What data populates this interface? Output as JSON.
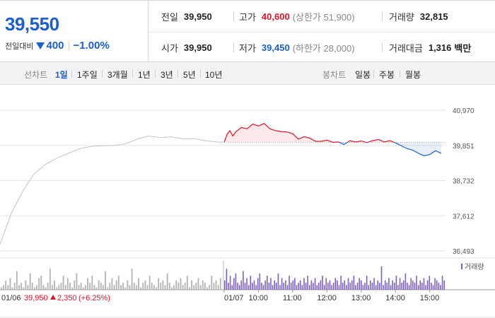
{
  "header": {
    "price": "39,550",
    "change_label": "전일대비",
    "change_value": "400",
    "change_pct": "−1.00%",
    "prev_close": {
      "label": "전일",
      "value": "39,950"
    },
    "high": {
      "label": "고가",
      "value": "40,600",
      "sub": "(상한가 51,900)"
    },
    "volume": {
      "label": "거래량",
      "value": "32,815"
    },
    "open": {
      "label": "시가",
      "value": "39,950"
    },
    "low": {
      "label": "저가",
      "value": "39,450",
      "sub": "(하한가 28,000)"
    },
    "trade_value": {
      "label": "거래대금",
      "value": "1,316",
      "unit": "백만"
    }
  },
  "toolbar": {
    "line_label": "선차트",
    "line_periods": [
      "1일",
      "1주일",
      "3개월",
      "1년",
      "3년",
      "5년",
      "10년"
    ],
    "active_period": "1일",
    "candle_label": "봉차트",
    "candle_periods": [
      "일봉",
      "주봉",
      "월봉"
    ]
  },
  "colors": {
    "up": "#e0162b",
    "down": "#1a5fd1",
    "prev": "#c4c4c4",
    "volume_today": "#7a5cc7",
    "volume_prev": "#b5b5b5"
  },
  "chart_data": {
    "type": "line",
    "base_value": 39950,
    "ylim": [
      36493,
      40970
    ],
    "y_ticks": [
      "40,970",
      "39,851",
      "38,732",
      "37,612",
      "36,493"
    ],
    "x_labels": [
      "01/07",
      "10:00",
      "11:00",
      "12:00",
      "13:00",
      "14:00",
      "15:00"
    ],
    "prev_day_label": "01/06",
    "prev_day_summary": {
      "close": "39,950",
      "change": "2,350",
      "pct": "(+6.25%)"
    },
    "volume_legend": "거래량",
    "series": [
      {
        "name": "01/06",
        "x": [
          "09:00",
          "09:20",
          "09:40",
          "10:00",
          "10:20",
          "10:40",
          "11:00",
          "11:20",
          "11:40",
          "12:00",
          "12:20",
          "12:40",
          "13:00",
          "13:20",
          "13:40",
          "14:00",
          "14:20",
          "14:40",
          "15:00",
          "15:20",
          "15:30"
        ],
        "values": [
          36700,
          37700,
          38400,
          38950,
          39250,
          39450,
          39600,
          39750,
          39820,
          39840,
          39850,
          39900,
          40050,
          40150,
          40100,
          40120,
          40060,
          40070,
          40000,
          39960,
          39950
        ]
      },
      {
        "name": "01/07",
        "x": [
          "09:00",
          "09:05",
          "09:10",
          "09:15",
          "09:20",
          "09:30",
          "09:40",
          "09:50",
          "10:00",
          "10:10",
          "10:20",
          "10:30",
          "10:40",
          "10:50",
          "11:00",
          "11:10",
          "11:20",
          "11:30",
          "11:40",
          "11:50",
          "12:00",
          "12:10",
          "12:20",
          "12:30",
          "12:40",
          "12:50",
          "13:00",
          "13:10",
          "13:20",
          "13:30",
          "13:40",
          "13:50",
          "14:00",
          "14:10",
          "14:20",
          "14:30",
          "14:40",
          "14:50",
          "15:00",
          "15:10",
          "15:20"
        ],
        "values": [
          39950,
          40200,
          40320,
          40150,
          40280,
          40420,
          40380,
          40530,
          40470,
          40550,
          40380,
          40320,
          40290,
          40280,
          40220,
          40050,
          40130,
          40080,
          39980,
          39980,
          40020,
          39950,
          39960,
          39880,
          40000,
          39960,
          39990,
          39940,
          40000,
          40040,
          39960,
          40000,
          39930,
          39840,
          39750,
          39700,
          39600,
          39520,
          39560,
          39680,
          39600
        ]
      }
    ],
    "volume": {
      "prev_day": [
        1,
        2,
        4,
        2,
        5,
        1,
        3,
        8,
        2,
        3,
        1,
        4,
        2,
        7,
        3,
        1,
        2,
        5,
        6,
        2,
        1,
        3,
        9,
        2,
        4,
        1,
        2,
        3,
        6,
        2,
        5,
        3,
        1,
        4,
        7,
        2,
        3,
        1,
        2,
        5,
        3,
        6,
        2,
        1,
        4,
        3,
        2,
        8,
        1,
        3,
        5,
        2,
        4,
        6,
        2,
        3,
        1,
        4,
        2,
        9,
        3,
        2,
        5,
        1,
        3,
        4,
        2,
        6,
        3,
        2,
        1,
        5,
        3,
        4,
        2,
        7,
        3,
        1,
        2,
        4,
        3,
        5,
        2,
        3,
        6,
        1,
        4,
        2,
        3,
        5,
        2,
        4,
        3,
        1,
        2,
        6,
        3,
        4,
        2,
        5
      ],
      "today": [
        4,
        9,
        3,
        6,
        2,
        5,
        7,
        3,
        2,
        4,
        8,
        3,
        5,
        2,
        6,
        3,
        4,
        2,
        5,
        7,
        3,
        2,
        4,
        6,
        3,
        5,
        2,
        4,
        3,
        7,
        2,
        5,
        3,
        4,
        2,
        6,
        3,
        4,
        5,
        2,
        3,
        4,
        2,
        5,
        3,
        6,
        2,
        4,
        3,
        5,
        2,
        3,
        4,
        6,
        2,
        5,
        3,
        4,
        2,
        3,
        5,
        4,
        2,
        6,
        3,
        4,
        2,
        5,
        3,
        4,
        6,
        2,
        3,
        5,
        4,
        2,
        3,
        6,
        2,
        4,
        3,
        5,
        2,
        4,
        3,
        10,
        2,
        4,
        3,
        5,
        2,
        4,
        3,
        6,
        2,
        5,
        3,
        4,
        7,
        3,
        2,
        5,
        4,
        3,
        6,
        2,
        4,
        3,
        5,
        2,
        4,
        6,
        3,
        2,
        5,
        4,
        3,
        2,
        6,
        4
      ]
    }
  }
}
